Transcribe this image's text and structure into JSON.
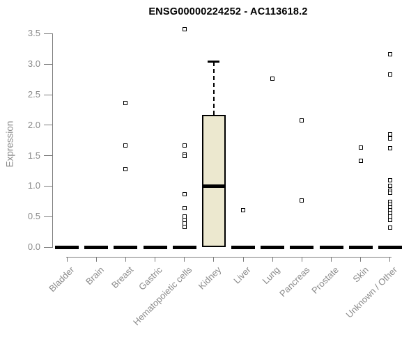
{
  "chart_data": {
    "type": "boxplot",
    "title": "ENSG00000224252 - AC113618.2",
    "ylabel": "Expression",
    "xlabel": "",
    "ylim": [
      0,
      3.5
    ],
    "ytick_labels": [
      "0.0",
      "0.5",
      "1.0",
      "1.5",
      "2.0",
      "2.5",
      "3.0",
      "3.5"
    ],
    "grid": false,
    "legend": "none",
    "categories": [
      "Bladder",
      "Brain",
      "Breast",
      "Gastric",
      "Hematopoietic cells",
      "Kidney",
      "Liver",
      "Lung",
      "Pancreas",
      "Prostate",
      "Skin",
      "Unknown / Other"
    ],
    "boxes": [
      {
        "category": "Bladder",
        "q1": 0,
        "median": 0,
        "q3": 0,
        "whisker_low": 0,
        "whisker_high": 0,
        "outliers": []
      },
      {
        "category": "Brain",
        "q1": 0,
        "median": 0,
        "q3": 0,
        "whisker_low": 0,
        "whisker_high": 0,
        "outliers": []
      },
      {
        "category": "Breast",
        "q1": 0,
        "median": 0,
        "q3": 0,
        "whisker_low": 0,
        "whisker_high": 0,
        "outliers": [
          2.36,
          1.67,
          1.28
        ]
      },
      {
        "category": "Gastric",
        "q1": 0,
        "median": 0,
        "q3": 0,
        "whisker_low": 0,
        "whisker_high": 0,
        "outliers": []
      },
      {
        "category": "Hematopoietic cells",
        "q1": 0,
        "median": 0,
        "q3": 0,
        "whisker_low": 0,
        "whisker_high": 0,
        "outliers": [
          3.57,
          1.67,
          1.52,
          1.49,
          0.87,
          0.64,
          0.5,
          0.45,
          0.39,
          0.33
        ]
      },
      {
        "category": "Kidney",
        "q1": 0,
        "median": 1.0,
        "q3": 2.17,
        "whisker_low": 0,
        "whisker_high": 3.04,
        "outliers": []
      },
      {
        "category": "Liver",
        "q1": 0,
        "median": 0,
        "q3": 0,
        "whisker_low": 0,
        "whisker_high": 0,
        "outliers": [
          0.61
        ]
      },
      {
        "category": "Lung",
        "q1": 0,
        "median": 0,
        "q3": 0,
        "whisker_low": 0,
        "whisker_high": 0,
        "outliers": [
          2.76
        ]
      },
      {
        "category": "Pancreas",
        "q1": 0,
        "median": 0,
        "q3": 0,
        "whisker_low": 0,
        "whisker_high": 0,
        "outliers": [
          2.08,
          0.77
        ]
      },
      {
        "category": "Prostate",
        "q1": 0,
        "median": 0,
        "q3": 0,
        "whisker_low": 0,
        "whisker_high": 0,
        "outliers": []
      },
      {
        "category": "Skin",
        "q1": 0,
        "median": 0,
        "q3": 0,
        "whisker_low": 0,
        "whisker_high": 0,
        "outliers": [
          1.63,
          1.42
        ]
      },
      {
        "category": "Unknown / Other",
        "q1": 0,
        "median": 0,
        "q3": 0,
        "whisker_low": 0,
        "whisker_high": 0,
        "outliers": [
          3.16,
          2.83,
          1.85,
          1.78,
          1.62,
          1.1,
          1.01,
          0.92,
          0.89,
          0.74,
          0.7,
          0.65,
          0.6,
          0.56,
          0.5,
          0.45,
          0.32
        ]
      }
    ],
    "colors": {
      "box_fill": "#ece8cf",
      "box_border": "#000000",
      "median": "#000000",
      "outlier_border": "#000000",
      "outlier_fill": "#ffffff",
      "axis": "#7d7d7d",
      "tick_label": "#8a8a8a",
      "title": "#000000"
    }
  }
}
